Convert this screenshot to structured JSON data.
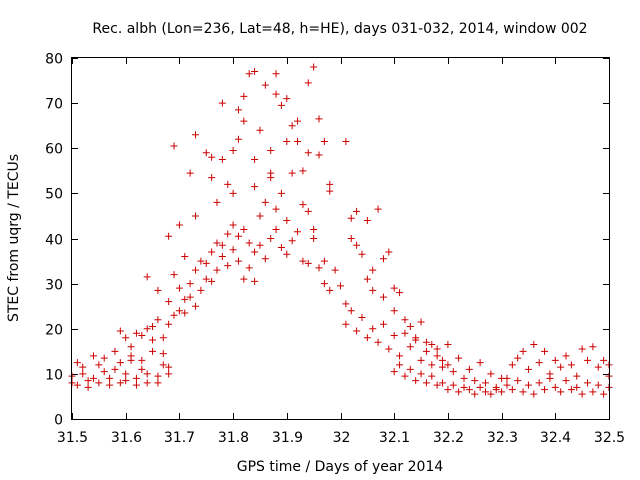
{
  "chart_data": {
    "type": "scatter",
    "title": "Rec. albh (Lon=236, Lat=48, h=HE), days 031-032, 2014, window 002",
    "xlabel": "GPS time / Days of year 2014",
    "ylabel": "STEC from uqrg / TECUs",
    "xlim": [
      31.5,
      32.5
    ],
    "ylim": [
      0,
      80
    ],
    "xticks": [
      31.5,
      31.6,
      31.7,
      31.8,
      31.9,
      32.0,
      32.1,
      32.2,
      32.3,
      32.4,
      32.5
    ],
    "xtick_labels": [
      "31.5",
      "31.6",
      "31.7",
      "31.8",
      "31.9",
      "32",
      "32.1",
      "32.2",
      "32.3",
      "32.4",
      "32.5"
    ],
    "yticks": [
      0,
      10,
      20,
      30,
      40,
      50,
      60,
      70,
      80
    ],
    "ytick_labels": [
      "0",
      "10",
      "20",
      "30",
      "40",
      "50",
      "60",
      "70",
      "80"
    ],
    "grid": false,
    "marker": "+",
    "color": "#cc0000",
    "series": [
      {
        "name": "STEC",
        "points": [
          [
            31.5,
            8.0
          ],
          [
            31.5,
            9.5
          ],
          [
            31.51,
            7.5
          ],
          [
            31.51,
            12.5
          ],
          [
            31.52,
            10.0
          ],
          [
            31.52,
            11.5
          ],
          [
            31.53,
            8.5
          ],
          [
            31.53,
            7.0
          ],
          [
            31.54,
            9.0
          ],
          [
            31.54,
            14.0
          ],
          [
            31.55,
            12.0
          ],
          [
            31.55,
            8.0
          ],
          [
            31.56,
            10.5
          ],
          [
            31.56,
            13.5
          ],
          [
            31.57,
            7.5
          ],
          [
            31.57,
            9.0
          ],
          [
            31.58,
            15.0
          ],
          [
            31.58,
            11.0
          ],
          [
            31.59,
            8.0
          ],
          [
            31.59,
            12.5
          ],
          [
            31.6,
            10.0
          ],
          [
            31.6,
            8.5
          ],
          [
            31.61,
            16.0
          ],
          [
            31.61,
            14.0
          ],
          [
            31.62,
            9.0
          ],
          [
            31.62,
            7.5
          ],
          [
            31.63,
            11.0
          ],
          [
            31.63,
            13.0
          ],
          [
            31.64,
            8.0
          ],
          [
            31.64,
            10.0
          ],
          [
            31.65,
            15.0
          ],
          [
            31.65,
            17.5
          ],
          [
            31.66,
            9.5
          ],
          [
            31.66,
            8.0
          ],
          [
            31.67,
            12.0
          ],
          [
            31.67,
            14.5
          ],
          [
            31.68,
            10.0
          ],
          [
            31.68,
            11.5
          ],
          [
            31.59,
            19.5
          ],
          [
            31.6,
            18.0
          ],
          [
            31.61,
            13.0
          ],
          [
            31.62,
            19.0
          ],
          [
            31.63,
            18.5
          ],
          [
            31.64,
            20.0
          ],
          [
            31.65,
            20.5
          ],
          [
            31.66,
            22.0
          ],
          [
            31.67,
            18.0
          ],
          [
            31.68,
            21.0
          ],
          [
            31.64,
            31.5
          ],
          [
            31.66,
            28.5
          ],
          [
            31.68,
            26.0
          ],
          [
            31.69,
            23.0
          ],
          [
            31.69,
            32.0
          ],
          [
            31.7,
            24.0
          ],
          [
            31.7,
            29.0
          ],
          [
            31.71,
            23.5
          ],
          [
            31.71,
            26.5
          ],
          [
            31.72,
            30.0
          ],
          [
            31.72,
            27.0
          ],
          [
            31.73,
            25.0
          ],
          [
            31.73,
            33.0
          ],
          [
            31.74,
            28.5
          ],
          [
            31.74,
            35.0
          ],
          [
            31.75,
            31.0
          ],
          [
            31.75,
            34.5
          ],
          [
            31.76,
            37.0
          ],
          [
            31.76,
            30.5
          ],
          [
            31.77,
            39.0
          ],
          [
            31.77,
            33.0
          ],
          [
            31.78,
            38.5
          ],
          [
            31.78,
            36.0
          ],
          [
            31.79,
            41.0
          ],
          [
            31.79,
            34.0
          ],
          [
            31.8,
            43.0
          ],
          [
            31.8,
            37.5
          ],
          [
            31.81,
            40.5
          ],
          [
            31.81,
            35.0
          ],
          [
            31.82,
            42.0
          ],
          [
            31.82,
            31.0
          ],
          [
            31.83,
            39.0
          ],
          [
            31.83,
            33.5
          ],
          [
            31.84,
            37.0
          ],
          [
            31.84,
            30.5
          ],
          [
            31.85,
            38.5
          ],
          [
            31.86,
            35.5
          ],
          [
            31.87,
            40.0
          ],
          [
            31.88,
            42.0
          ],
          [
            31.89,
            38.0
          ],
          [
            31.9,
            36.5
          ],
          [
            31.91,
            39.5
          ],
          [
            31.92,
            41.5
          ],
          [
            31.93,
            35.0
          ],
          [
            31.94,
            34.5
          ],
          [
            31.95,
            40.0
          ],
          [
            31.96,
            33.5
          ],
          [
            31.97,
            30.0
          ],
          [
            31.68,
            40.5
          ],
          [
            31.69,
            60.5
          ],
          [
            31.7,
            43.0
          ],
          [
            31.71,
            36.0
          ],
          [
            31.72,
            54.5
          ],
          [
            31.73,
            45.0
          ],
          [
            31.73,
            63.0
          ],
          [
            31.75,
            59.0
          ],
          [
            31.76,
            53.5
          ],
          [
            31.76,
            58.0
          ],
          [
            31.77,
            48.0
          ],
          [
            31.78,
            70.0
          ],
          [
            31.78,
            57.5
          ],
          [
            31.79,
            52.0
          ],
          [
            31.8,
            59.5
          ],
          [
            31.8,
            50.0
          ],
          [
            31.81,
            62.0
          ],
          [
            31.81,
            68.5
          ],
          [
            31.82,
            66.0
          ],
          [
            31.82,
            71.5
          ],
          [
            31.83,
            76.5
          ],
          [
            31.84,
            77.0
          ],
          [
            31.84,
            57.5
          ],
          [
            31.85,
            64.0
          ],
          [
            31.86,
            74.0
          ],
          [
            31.87,
            59.5
          ],
          [
            31.87,
            54.5
          ],
          [
            31.88,
            76.5
          ],
          [
            31.88,
            72.0
          ],
          [
            31.89,
            69.5
          ],
          [
            31.9,
            71.0
          ],
          [
            31.9,
            61.5
          ],
          [
            31.91,
            65.0
          ],
          [
            31.92,
            66.0
          ],
          [
            31.92,
            61.5
          ],
          [
            31.93,
            55.0
          ],
          [
            31.94,
            74.5
          ],
          [
            31.94,
            59.0
          ],
          [
            31.95,
            78.0
          ],
          [
            31.96,
            58.5
          ],
          [
            31.96,
            66.5
          ],
          [
            31.97,
            61.5
          ],
          [
            31.98,
            52.0
          ],
          [
            31.98,
            50.5
          ],
          [
            31.84,
            51.5
          ],
          [
            31.85,
            45.0
          ],
          [
            31.86,
            48.0
          ],
          [
            31.87,
            53.5
          ],
          [
            31.88,
            46.5
          ],
          [
            31.89,
            50.0
          ],
          [
            31.9,
            44.0
          ],
          [
            31.91,
            54.5
          ],
          [
            31.93,
            47.5
          ],
          [
            31.94,
            46.0
          ],
          [
            31.95,
            42.0
          ],
          [
            31.97,
            35.0
          ],
          [
            31.98,
            28.5
          ],
          [
            31.99,
            33.0
          ],
          [
            32.0,
            29.5
          ],
          [
            32.01,
            25.5
          ],
          [
            32.01,
            61.5
          ],
          [
            32.02,
            44.5
          ],
          [
            32.02,
            40.0
          ],
          [
            32.03,
            38.5
          ],
          [
            32.03,
            46.0
          ],
          [
            32.04,
            36.5
          ],
          [
            32.05,
            31.0
          ],
          [
            32.05,
            44.0
          ],
          [
            32.06,
            28.5
          ],
          [
            32.06,
            33.0
          ],
          [
            32.07,
            46.5
          ],
          [
            32.08,
            35.5
          ],
          [
            32.08,
            27.0
          ],
          [
            32.09,
            37.0
          ],
          [
            32.1,
            29.0
          ],
          [
            32.1,
            24.0
          ],
          [
            32.01,
            21.0
          ],
          [
            32.02,
            24.0
          ],
          [
            32.03,
            19.5
          ],
          [
            32.04,
            22.5
          ],
          [
            32.05,
            18.0
          ],
          [
            32.06,
            20.0
          ],
          [
            32.07,
            17.0
          ],
          [
            32.08,
            21.0
          ],
          [
            32.09,
            15.5
          ],
          [
            32.1,
            18.5
          ],
          [
            32.11,
            14.0
          ],
          [
            32.12,
            19.0
          ],
          [
            32.13,
            16.0
          ],
          [
            32.14,
            17.5
          ],
          [
            32.15,
            13.0
          ],
          [
            32.16,
            15.0
          ],
          [
            32.17,
            12.0
          ],
          [
            32.18,
            14.0
          ],
          [
            32.19,
            11.5
          ],
          [
            32.2,
            16.5
          ],
          [
            32.21,
            10.5
          ],
          [
            32.22,
            13.5
          ],
          [
            32.23,
            9.0
          ],
          [
            32.24,
            11.0
          ],
          [
            32.25,
            8.5
          ],
          [
            32.26,
            12.5
          ],
          [
            32.27,
            8.0
          ],
          [
            32.28,
            10.0
          ],
          [
            32.29,
            7.0
          ],
          [
            32.3,
            9.0
          ],
          [
            32.11,
            28.0
          ],
          [
            32.12,
            22.0
          ],
          [
            32.13,
            20.5
          ],
          [
            32.14,
            18.0
          ],
          [
            32.15,
            21.5
          ],
          [
            32.16,
            17.0
          ],
          [
            32.17,
            16.5
          ],
          [
            32.18,
            15.5
          ],
          [
            32.19,
            13.0
          ],
          [
            32.2,
            12.0
          ],
          [
            32.1,
            10.5
          ],
          [
            32.11,
            12.0
          ],
          [
            32.12,
            9.5
          ],
          [
            32.13,
            11.0
          ],
          [
            32.14,
            8.5
          ],
          [
            32.15,
            10.0
          ],
          [
            32.16,
            8.0
          ],
          [
            32.17,
            9.5
          ],
          [
            32.18,
            7.5
          ],
          [
            32.19,
            8.0
          ],
          [
            32.2,
            6.5
          ],
          [
            32.21,
            7.5
          ],
          [
            32.22,
            6.0
          ],
          [
            32.23,
            7.0
          ],
          [
            32.24,
            6.5
          ],
          [
            32.25,
            5.5
          ],
          [
            32.26,
            7.0
          ],
          [
            32.27,
            6.0
          ],
          [
            32.28,
            5.5
          ],
          [
            32.29,
            6.5
          ],
          [
            32.3,
            6.0
          ],
          [
            32.31,
            7.5
          ],
          [
            32.32,
            12.0
          ],
          [
            32.33,
            13.5
          ],
          [
            32.34,
            15.0
          ],
          [
            32.35,
            11.0
          ],
          [
            32.36,
            16.5
          ],
          [
            32.37,
            12.5
          ],
          [
            32.38,
            15.0
          ],
          [
            32.39,
            10.0
          ],
          [
            32.4,
            13.0
          ],
          [
            32.41,
            11.5
          ],
          [
            32.42,
            14.0
          ],
          [
            32.43,
            12.0
          ],
          [
            32.44,
            9.5
          ],
          [
            32.45,
            15.5
          ],
          [
            32.46,
            13.0
          ],
          [
            32.47,
            16.0
          ],
          [
            32.48,
            11.5
          ],
          [
            32.49,
            13.0
          ],
          [
            32.31,
            9.0
          ],
          [
            32.32,
            6.5
          ],
          [
            32.33,
            8.5
          ],
          [
            32.34,
            6.0
          ],
          [
            32.35,
            7.5
          ],
          [
            32.36,
            5.5
          ],
          [
            32.37,
            8.0
          ],
          [
            32.38,
            6.5
          ],
          [
            32.39,
            9.0
          ],
          [
            32.4,
            7.0
          ],
          [
            32.41,
            6.0
          ],
          [
            32.42,
            8.5
          ],
          [
            32.43,
            6.5
          ],
          [
            32.44,
            7.0
          ],
          [
            32.45,
            5.5
          ],
          [
            32.46,
            8.0
          ],
          [
            32.47,
            6.0
          ],
          [
            32.48,
            7.5
          ],
          [
            32.49,
            5.5
          ],
          [
            32.5,
            9.5
          ],
          [
            32.5,
            7.0
          ],
          [
            32.5,
            12.0
          ]
        ]
      }
    ]
  }
}
